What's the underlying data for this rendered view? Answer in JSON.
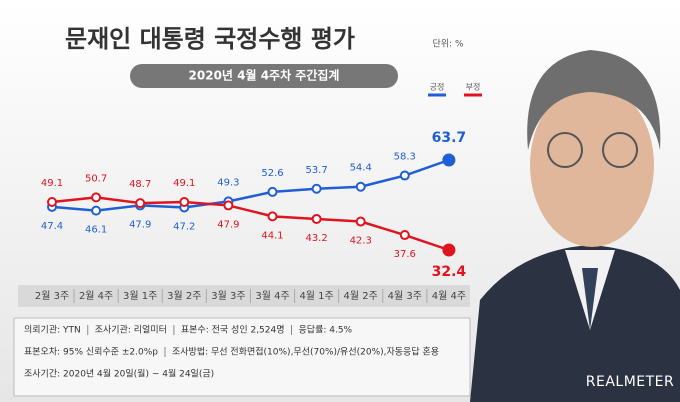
{
  "chart_data": {
    "type": "line",
    "title": "문재인 대통령 국정수행 평가",
    "unit": "단위: %",
    "subtitle": "2020년 4월 4주차 주간집계",
    "categories": [
      "2월 3주",
      "2월 4주",
      "3월 1주",
      "3월 2주",
      "3월 3주",
      "3월 4주",
      "4월 1주",
      "4월 2주",
      "4월 3주",
      "4월 4주"
    ],
    "series": [
      {
        "name": "긍정",
        "color": "#1f5fd6",
        "values": [
          47.4,
          46.1,
          47.9,
          47.2,
          49.3,
          52.6,
          53.7,
          54.4,
          58.3,
          63.7
        ]
      },
      {
        "name": "부정",
        "color": "#e0141e",
        "values": [
          49.1,
          50.7,
          48.7,
          49.1,
          47.9,
          44.1,
          43.2,
          42.3,
          37.6,
          32.4
        ]
      }
    ],
    "footer": [
      [
        "의뢰기관: YTN",
        "조사기관: 리얼미터",
        "표본수: 전국 성인 2,524명",
        "응답률: 4.5%"
      ],
      [
        "표본오차: 95% 신뢰수준 ±2.0%p",
        "조사방법: 무선 전화면접(10%),무선(70%)/유선(20%),자동응답 혼용"
      ],
      [
        "조사기간: 2020년 4월 20일(월) ~ 4월 24일(금)"
      ]
    ],
    "brand": "REALMETER"
  }
}
